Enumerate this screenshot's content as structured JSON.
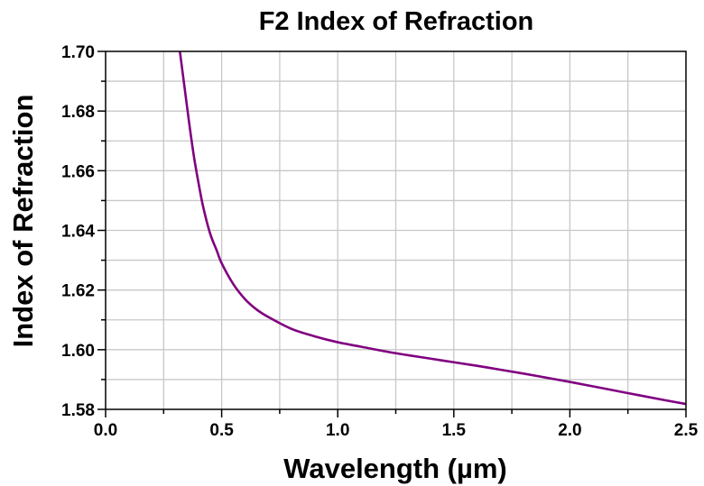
{
  "chart_data": {
    "type": "line",
    "title": "F2 Index of Refraction",
    "xlabel": "Wavelength (µm)",
    "ylabel": "Index of Refraction",
    "xlim": [
      0.0,
      2.5
    ],
    "ylim": [
      1.58,
      1.7
    ],
    "x_ticks": [
      "0.0",
      "0.5",
      "1.0",
      "1.5",
      "2.0",
      "2.5"
    ],
    "x_tick_values": [
      0.0,
      0.5,
      1.0,
      1.5,
      2.0,
      2.5
    ],
    "y_ticks": [
      "1.58",
      "1.60",
      "1.62",
      "1.64",
      "1.66",
      "1.68",
      "1.70"
    ],
    "y_tick_values": [
      1.58,
      1.6,
      1.62,
      1.64,
      1.66,
      1.68,
      1.7
    ],
    "grid": true,
    "line_color": "#800080",
    "series": [
      {
        "x": [
          0.32,
          0.34,
          0.36,
          0.38,
          0.4,
          0.42,
          0.45,
          0.48,
          0.5,
          0.55,
          0.6,
          0.65,
          0.7,
          0.8,
          0.9,
          1.0,
          1.1,
          1.2,
          1.3,
          1.4,
          1.5,
          1.6,
          1.7,
          1.8,
          1.9,
          2.0,
          2.1,
          2.2,
          2.3,
          2.4,
          2.5
        ],
        "y": [
          1.7,
          1.688,
          1.676,
          1.665,
          1.656,
          1.648,
          1.639,
          1.633,
          1.629,
          1.622,
          1.617,
          1.6135,
          1.611,
          1.607,
          1.6045,
          1.6025,
          1.601,
          1.5995,
          1.5982,
          1.597,
          1.5958,
          1.5946,
          1.5933,
          1.592,
          1.5906,
          1.5892,
          1.5877,
          1.5862,
          1.5847,
          1.5832,
          1.5818
        ]
      }
    ]
  }
}
